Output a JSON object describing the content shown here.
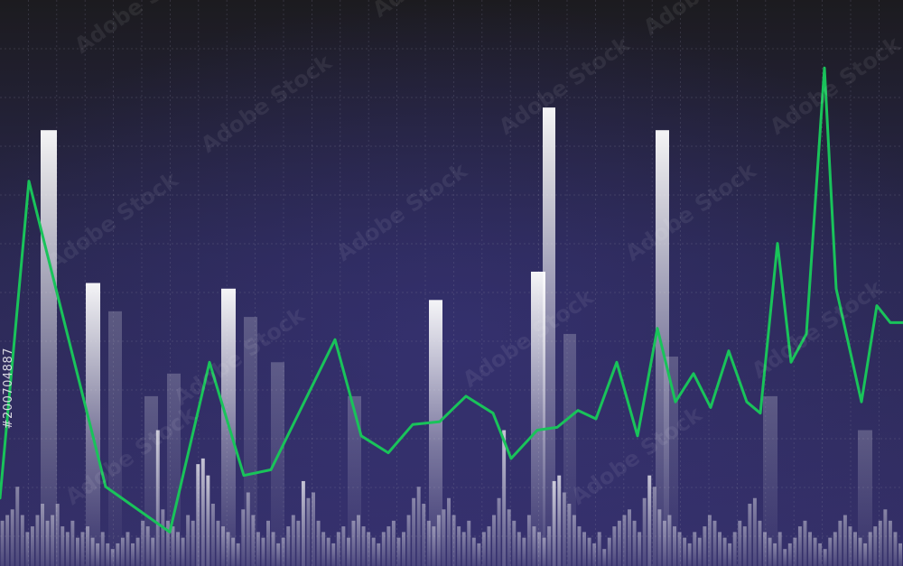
{
  "watermark": {
    "brand_text": "Adobe Stock",
    "stock_id": "#200704887"
  },
  "colors": {
    "bg_top": "#1c1b1f",
    "bg_mid": "#2a2850",
    "bg_bottom": "#35306a",
    "grid": "#8a8aa0",
    "line": "#19c35a",
    "bar_light": "#ffffff",
    "bar_mid": "#c8c8d4"
  },
  "chart_data": {
    "type": "bar",
    "grid": true,
    "xlim": [
      0,
      100
    ],
    "ylim": [
      0,
      100
    ],
    "series": [
      {
        "kind": "line",
        "points": [
          [
            0,
            12
          ],
          [
            3.2,
            68
          ],
          [
            11.7,
            14
          ],
          [
            18.8,
            6
          ],
          [
            23.2,
            36
          ],
          [
            27,
            16
          ],
          [
            30,
            17
          ],
          [
            37.1,
            40
          ],
          [
            40,
            23
          ],
          [
            43,
            20
          ],
          [
            45.7,
            25
          ],
          [
            48.7,
            25.5
          ],
          [
            51.6,
            30
          ],
          [
            54.6,
            27
          ],
          [
            56.6,
            19
          ],
          [
            59.5,
            24
          ],
          [
            61.7,
            24.5
          ],
          [
            64,
            27.5
          ],
          [
            66,
            26
          ],
          [
            68.3,
            36
          ],
          [
            70.6,
            23
          ],
          [
            72.8,
            42
          ],
          [
            74.8,
            29
          ],
          [
            76.8,
            34
          ],
          [
            78.7,
            28
          ],
          [
            80.7,
            38
          ],
          [
            82.7,
            29
          ],
          [
            84.2,
            27
          ],
          [
            86.1,
            57
          ],
          [
            87.6,
            36
          ],
          [
            89.3,
            41
          ],
          [
            91.3,
            88
          ],
          [
            92.6,
            49
          ],
          [
            95.4,
            29
          ],
          [
            97.1,
            46
          ],
          [
            98.6,
            43
          ],
          [
            100,
            43
          ]
        ]
      },
      {
        "kind": "tall_bars",
        "bars": [
          [
            4.5,
            1.8,
            77
          ],
          [
            9.5,
            1.6,
            50
          ],
          [
            12,
            1.5,
            45
          ],
          [
            16,
            1.5,
            30
          ],
          [
            18.5,
            1.5,
            34
          ],
          [
            24.5,
            1.6,
            49
          ],
          [
            27,
            1.5,
            44
          ],
          [
            30,
            1.5,
            36
          ],
          [
            38.5,
            1.5,
            30
          ],
          [
            47.5,
            1.5,
            47
          ],
          [
            58.8,
            1.6,
            52
          ],
          [
            60.1,
            1.4,
            81
          ],
          [
            62.4,
            1.4,
            41
          ],
          [
            72.6,
            1.5,
            77
          ],
          [
            73.5,
            1.6,
            37
          ],
          [
            84.5,
            1.6,
            30
          ],
          [
            95,
            1.6,
            24
          ]
        ]
      },
      {
        "kind": "small_bars",
        "values": [
          8,
          9,
          10,
          14,
          9,
          6,
          7,
          9,
          11,
          8,
          9,
          11,
          7,
          6,
          8,
          5,
          6,
          7,
          5,
          4,
          6,
          4,
          3,
          4,
          5,
          6,
          4,
          5,
          8,
          7,
          5,
          24,
          10,
          8,
          7,
          6,
          5,
          9,
          8,
          18,
          19,
          16,
          11,
          8,
          7,
          6,
          5,
          4,
          10,
          13,
          9,
          6,
          5,
          8,
          6,
          4,
          5,
          7,
          9,
          8,
          15,
          12,
          13,
          8,
          6,
          5,
          4,
          6,
          7,
          5,
          8,
          9,
          7,
          6,
          5,
          4,
          6,
          7,
          8,
          5,
          6,
          9,
          12,
          14,
          11,
          8,
          7,
          9,
          10,
          12,
          9,
          7,
          6,
          8,
          5,
          4,
          6,
          7,
          9,
          12,
          24,
          10,
          8,
          6,
          5,
          9,
          7,
          6,
          5,
          7,
          15,
          16,
          13,
          11,
          9,
          7,
          6,
          5,
          4,
          6,
          3,
          5,
          7,
          8,
          9,
          10,
          8,
          6,
          12,
          16,
          14,
          10,
          8,
          9,
          7,
          6,
          5,
          4,
          6,
          5,
          7,
          9,
          8,
          6,
          5,
          4,
          6,
          8,
          7,
          11,
          12,
          8,
          6,
          5,
          4,
          6,
          3,
          4,
          5,
          7,
          8,
          6,
          5,
          4,
          3,
          5,
          6,
          8,
          9,
          7,
          6,
          5,
          4,
          6,
          7,
          8,
          10,
          8,
          6,
          4
        ]
      }
    ]
  }
}
